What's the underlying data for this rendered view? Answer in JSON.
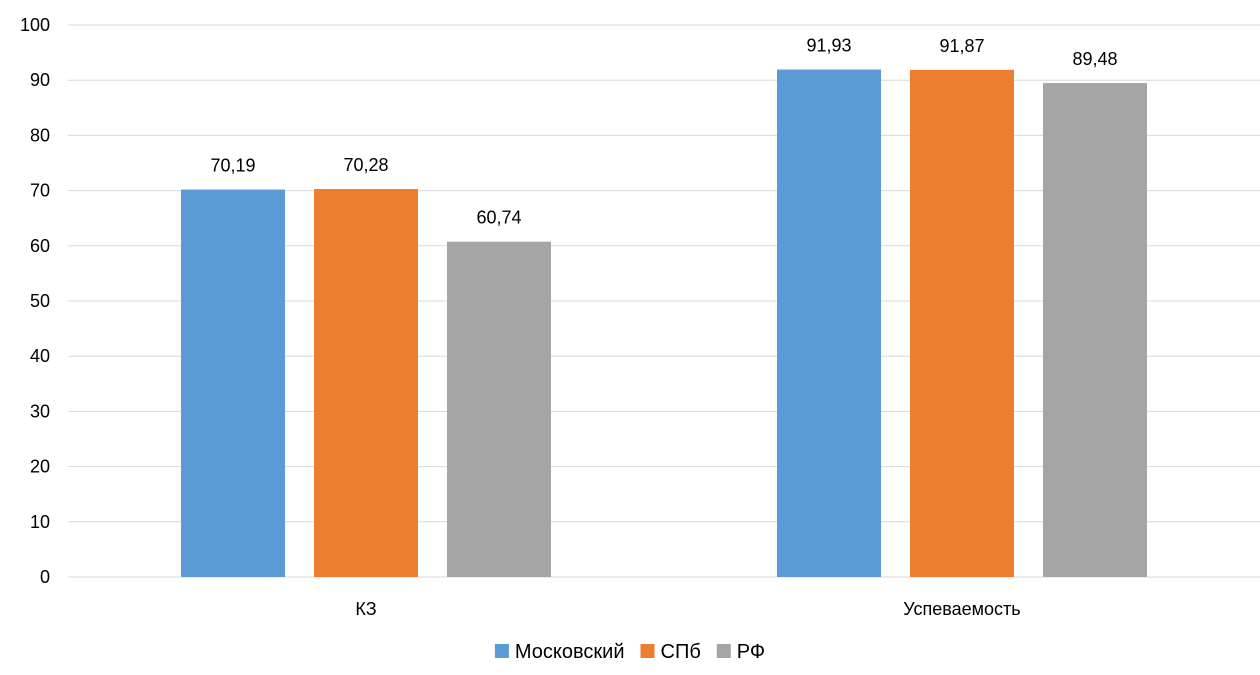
{
  "chart_data": {
    "type": "bar",
    "title": "",
    "xlabel": "",
    "ylabel": "",
    "categories": [
      "КЗ",
      "Успеваемость"
    ],
    "series": [
      {
        "name": "Московский",
        "values": [
          70.19,
          91.93
        ],
        "labels": [
          "70,19",
          "91,93"
        ],
        "color": "#5B9BD5"
      },
      {
        "name": "СПб",
        "values": [
          70.28,
          91.87
        ],
        "labels": [
          "70,28",
          "91,87"
        ],
        "color": "#ED7D31"
      },
      {
        "name": "РФ",
        "values": [
          60.74,
          89.48
        ],
        "labels": [
          "60,74",
          "89,48"
        ],
        "color": "#A5A5A5"
      }
    ],
    "ylim": [
      0,
      100
    ],
    "yticks": [
      0,
      10,
      20,
      30,
      40,
      50,
      60,
      70,
      80,
      90,
      100
    ],
    "grid": true,
    "legend_position": "bottom",
    "colors": {
      "gridline": "#D9D9D9",
      "text": "#000000"
    }
  }
}
